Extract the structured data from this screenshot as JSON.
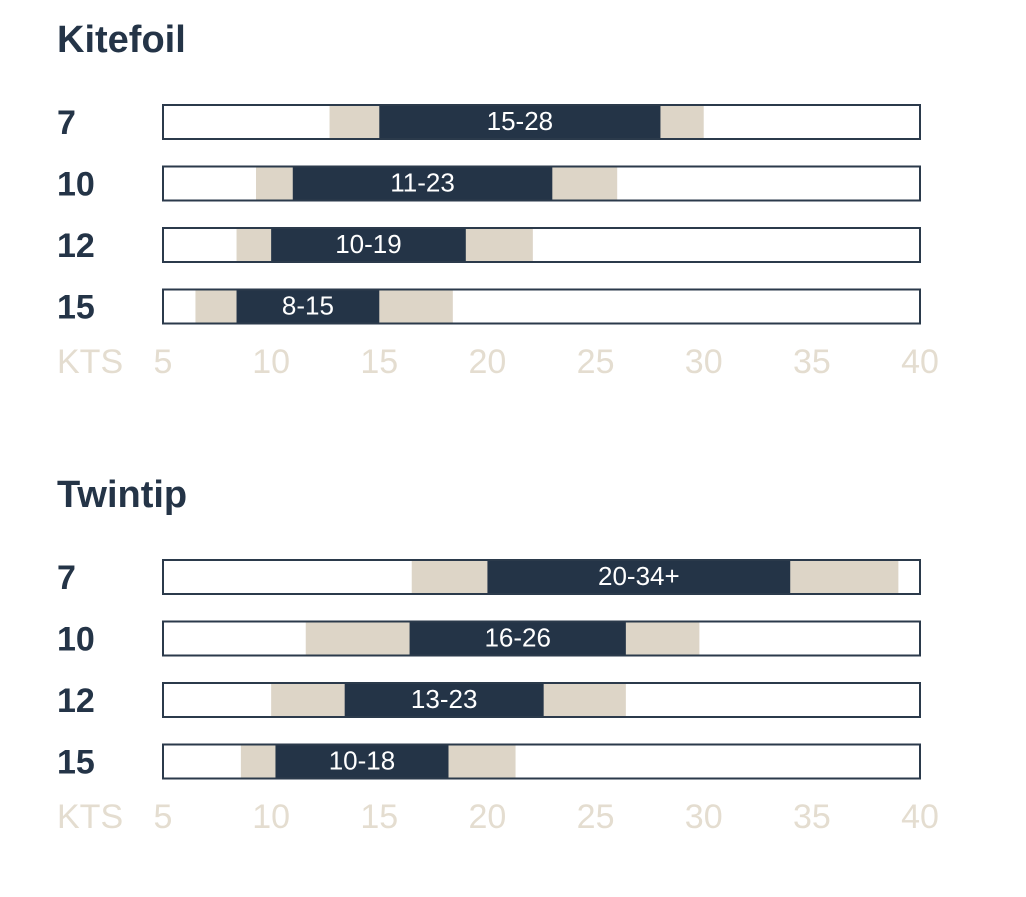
{
  "chart_data": [
    {
      "type": "range",
      "title": "Kitefoil",
      "categories": [
        "7",
        "10",
        "12",
        "15"
      ],
      "x_label": "KTS",
      "xlim": [
        5,
        40
      ],
      "xticks": [
        5,
        10,
        15,
        20,
        25,
        30,
        35,
        40
      ],
      "ranges": {
        "color": "#243447",
        "low": [
          15,
          11,
          10,
          8.4
        ],
        "high": [
          28,
          23,
          19,
          15
        ],
        "value_labels": [
          "15-28",
          "11-23",
          "10-19",
          "8-15"
        ]
      },
      "extended": {
        "color": "#ddd5c7",
        "low": [
          12.7,
          9.3,
          8.4,
          6.5
        ],
        "high": [
          30,
          26,
          22.1,
          18.4
        ]
      }
    },
    {
      "type": "range",
      "title": "Twintip",
      "categories": [
        "7",
        "10",
        "12",
        "15"
      ],
      "x_label": "KTS",
      "xlim": [
        5,
        40
      ],
      "xticks": [
        5,
        10,
        15,
        20,
        25,
        30,
        35,
        40
      ],
      "ranges": {
        "color": "#243447",
        "low": [
          20,
          16.4,
          13.4,
          10.2
        ],
        "high": [
          34,
          26.4,
          22.6,
          18.2
        ],
        "value_labels": [
          "20-34+",
          "16-26",
          "13-23",
          "10-18"
        ]
      },
      "extended": {
        "color": "#ddd5c7",
        "low": [
          16.5,
          11.6,
          10,
          8.6
        ],
        "high": [
          39,
          29.8,
          26.4,
          21.3
        ]
      }
    }
  ]
}
